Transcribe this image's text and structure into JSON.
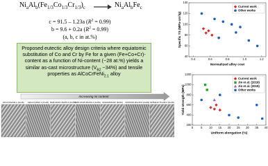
{
  "formula_from": [
    "Ni",
    "a",
    "Al",
    "b",
    "(Fe",
    "1/3",
    "Co",
    "1/3",
    "Cr",
    "1/3",
    ")",
    "c"
  ],
  "formula_to": [
    "Ni",
    "a",
    "Al",
    "b",
    "Fe",
    "c"
  ],
  "equations": [
    [
      "c = 91.5 – 1.23a (",
      "R",
      "2",
      " = 0.99)"
    ],
    [
      "b = 9.6 + 0.2a (",
      "R",
      "2",
      " = 0.99)"
    ],
    [
      "(a, b, c in at.%)"
    ]
  ],
  "design_box": [
    "Proposed eutectic alloy design criteria where equiatomic substitution of Co and Cr by Fe for a given (Fe+Co+Cr)-content as a function of Ni-content (~28 at.%) yields a similar as-cast microstructure (V",
    "B2",
    " ~34%) and tensile properties as AlCoCrFeNi",
    "2.1",
    " alloy"
  ],
  "arrow_label": "Increasing Ni content",
  "micrographs": [
    "AlCoCrFeNi2.1 (Fe16)",
    "Al(FeCr)2Ni2.1 (Fe23)",
    "Ni28.3Al16.4Fe55.3 (Fe55)",
    "Ni30.2Al15.6Fe54.2 (Fe54)",
    "Ni32Al16Fe52 (Fe52)",
    "Ni34Al16.4Fe49.6 (Fe49)",
    "Ni35Al16.7Fe48.3 (Fe48)"
  ],
  "chart_data": [
    {
      "type": "scatter",
      "x_label": "Normalized alloy cost",
      "y_label": "Specific YS (MPa·cm³/g)",
      "xlim": [
        0.35,
        1.25
      ],
      "xticks": [
        0.4,
        0.6,
        0.8,
        {
          "value": 1,
          "label": "1.0"
        },
        1.2
      ],
      "ylim": [
        40,
        140
      ],
      "yticks": [
        40,
        60,
        80,
        100,
        120,
        140
      ],
      "legend": "upper-right",
      "series": [
        {
          "name": "Current work",
          "color": "#d62728",
          "marker": "diamond",
          "x": [
            0.52,
            0.55,
            0.58,
            0.62
          ],
          "values": [
            92,
            84,
            88,
            80
          ]
        },
        {
          "name": "Other works",
          "color": "#1f5fbf",
          "marker": "circle",
          "x": [
            0.5,
            0.65,
            0.7,
            0.75,
            0.85,
            0.9,
            0.95,
            1.05,
            1.15
          ],
          "values": [
            120,
            110,
            75,
            105,
            100,
            85,
            95,
            70,
            60
          ]
        }
      ]
    },
    {
      "type": "scatter",
      "x_label": "Uniform elongation (%)",
      "y_label": "Yield strength (MPa)",
      "xlim": [
        0,
        40
      ],
      "xticks": [
        0,
        5,
        10,
        15,
        20,
        25,
        30,
        35,
        40
      ],
      "ylim": [
        200,
        1200
      ],
      "yticks": [
        200,
        400,
        600,
        800,
        1000,
        1200
      ],
      "legend": "upper-right",
      "series": [
        {
          "name": "Current work",
          "color": "#d62728",
          "marker": "diamond",
          "x": [
            10,
            12,
            13,
            15
          ],
          "values": [
            550,
            520,
            600,
            500
          ]
        },
        {
          "name": "Jin et al. (2019)",
          "color": "#2ca02c",
          "marker": "square",
          "x": [
            7,
            8
          ],
          "values": [
            1000,
            900
          ]
        },
        {
          "name": "Jin et al. (2019)",
          "color": "#9467bd",
          "marker": "triangle",
          "x": [
            12
          ],
          "values": [
            700
          ]
        },
        {
          "name": "Other works",
          "color": "#1f5fbf",
          "marker": "circle",
          "x": [
            5,
            15,
            20,
            25,
            35,
            38
          ],
          "values": [
            700,
            800,
            400,
            350,
            600,
            330
          ]
        }
      ]
    }
  ]
}
